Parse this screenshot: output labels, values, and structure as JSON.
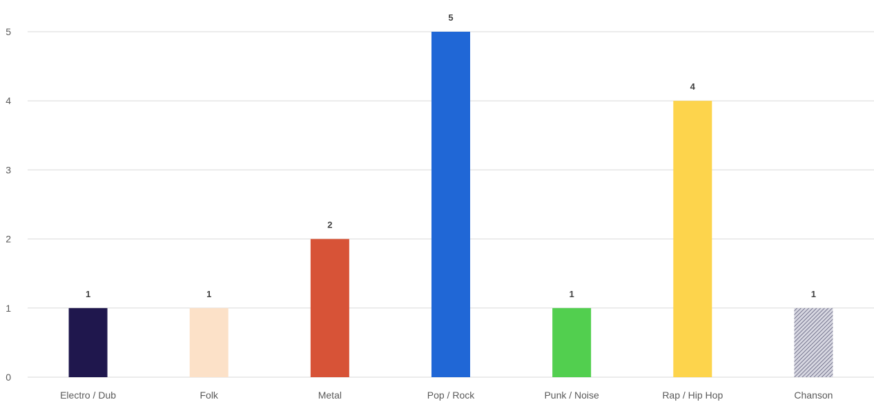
{
  "chart_data": {
    "type": "bar",
    "categories": [
      "Electro / Dub",
      "Folk",
      "Metal",
      "Pop / Rock",
      "Punk / Noise",
      "Rap / Hip Hop",
      "Chanson"
    ],
    "values": [
      1,
      1,
      2,
      5,
      1,
      4,
      1
    ],
    "bar_colors": [
      "#1f174d",
      "#fce1c8",
      "#d75337",
      "#2067d6",
      "#52cf4f",
      "#fdd44c",
      "#8c8ca6"
    ],
    "bar_patterns": [
      null,
      null,
      null,
      null,
      null,
      null,
      "diagonal-hatch"
    ],
    "title": "",
    "xlabel": "",
    "ylabel": "",
    "ylim": [
      0,
      5
    ],
    "yticks": [
      0,
      1,
      2,
      3,
      4,
      5
    ],
    "grid": true,
    "legend": "none",
    "data_labels": true
  }
}
